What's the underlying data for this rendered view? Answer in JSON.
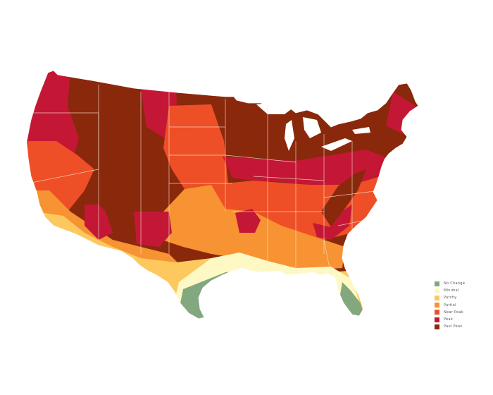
{
  "legend": {
    "items": [
      {
        "label": "No Change",
        "color": "#83a77f"
      },
      {
        "label": "Minimal",
        "color": "#fef8c4"
      },
      {
        "label": "Patchy",
        "color": "#fdc95e"
      },
      {
        "label": "Partial",
        "color": "#f79332"
      },
      {
        "label": "Near Peak",
        "color": "#ee4f26"
      },
      {
        "label": "Peak",
        "color": "#c41735"
      },
      {
        "label": "Past Peak",
        "color": "#8a280c"
      }
    ]
  },
  "colors": {
    "background": "#ffffff",
    "border_lines": "#f3e4d6",
    "lakes": "#ffffff"
  }
}
